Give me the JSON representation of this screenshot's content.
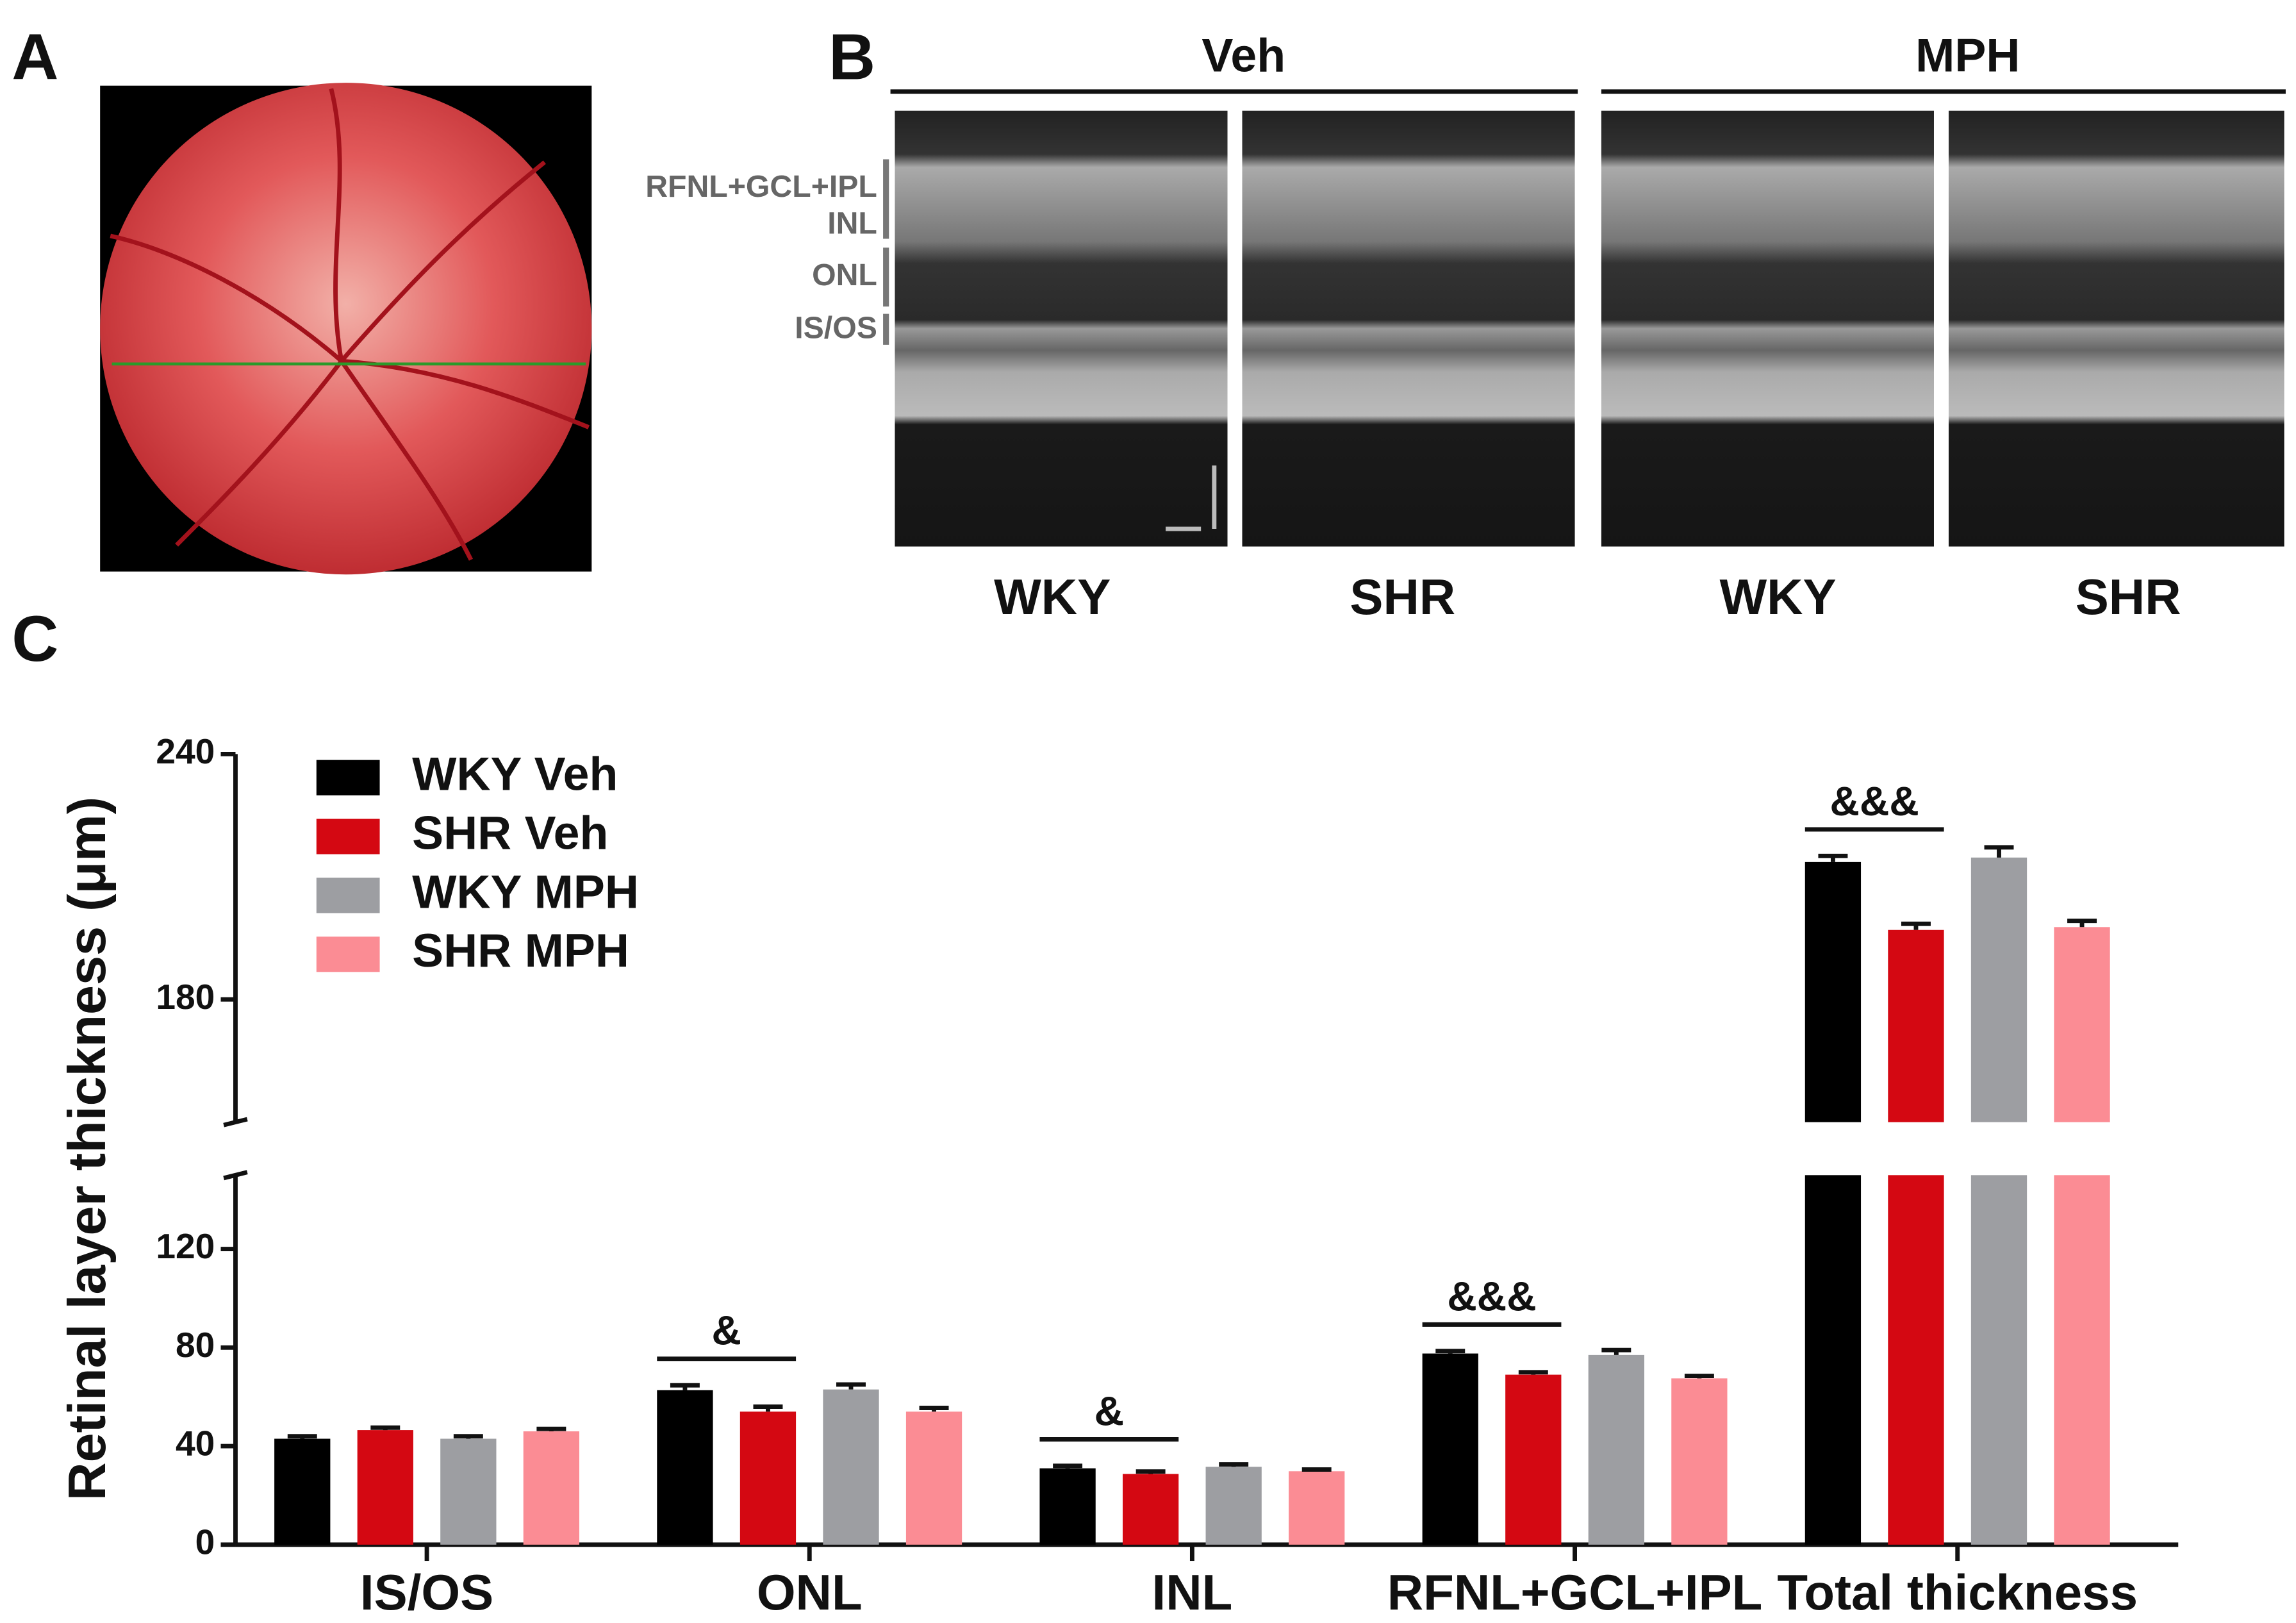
{
  "panels": {
    "a_label": "A",
    "b_label": "B",
    "c_label": "C",
    "b_groups": [
      "Veh",
      "MPH"
    ],
    "b_columns": [
      "WKY",
      "SHR",
      "WKY",
      "SHR"
    ],
    "b_layers": [
      "RFNL+GCL+IPL",
      "INL",
      "ONL",
      "IS/OS"
    ]
  },
  "chart_data": {
    "type": "bar",
    "ylabel": "Retinal layer thickness (μm)",
    "categories": [
      "IS/OS",
      "ONL",
      "INL",
      "RFNL+GCL+IPL",
      "Total thickness"
    ],
    "series": [
      {
        "name": "WKY Veh",
        "color": "#000000",
        "values": [
          43,
          62.7,
          31,
          77.6,
          213.6
        ],
        "errors": [
          1,
          2,
          1,
          1,
          1.5
        ]
      },
      {
        "name": "SHR Veh",
        "color": "#d40812",
        "values": [
          46.5,
          54,
          28.7,
          69,
          197
        ],
        "errors": [
          1,
          2,
          1,
          1,
          1.5
        ]
      },
      {
        "name": "WKY MPH",
        "color": "#9d9ea2",
        "values": [
          43,
          63,
          31.6,
          77,
          214.7
        ],
        "errors": [
          1,
          2,
          1,
          2,
          2.5
        ]
      },
      {
        "name": "SHR MPH",
        "color": "#fb8c94",
        "values": [
          46,
          54,
          29.8,
          67.5,
          197.7
        ],
        "errors": [
          1,
          1.5,
          0.7,
          1,
          1.5
        ]
      }
    ],
    "ysegments": [
      {
        "ylim": [
          0,
          150
        ],
        "yticks": [
          0,
          40,
          80,
          120
        ]
      },
      {
        "ylim": [
          150,
          240
        ],
        "yticks": [
          180,
          240
        ]
      }
    ],
    "annotations": [
      {
        "text": "&",
        "category": 1
      },
      {
        "text": "&",
        "category": 2
      },
      {
        "text": "&&&",
        "category": 3
      },
      {
        "text": "&&&",
        "category": 4
      }
    ],
    "legend": "top-left"
  }
}
